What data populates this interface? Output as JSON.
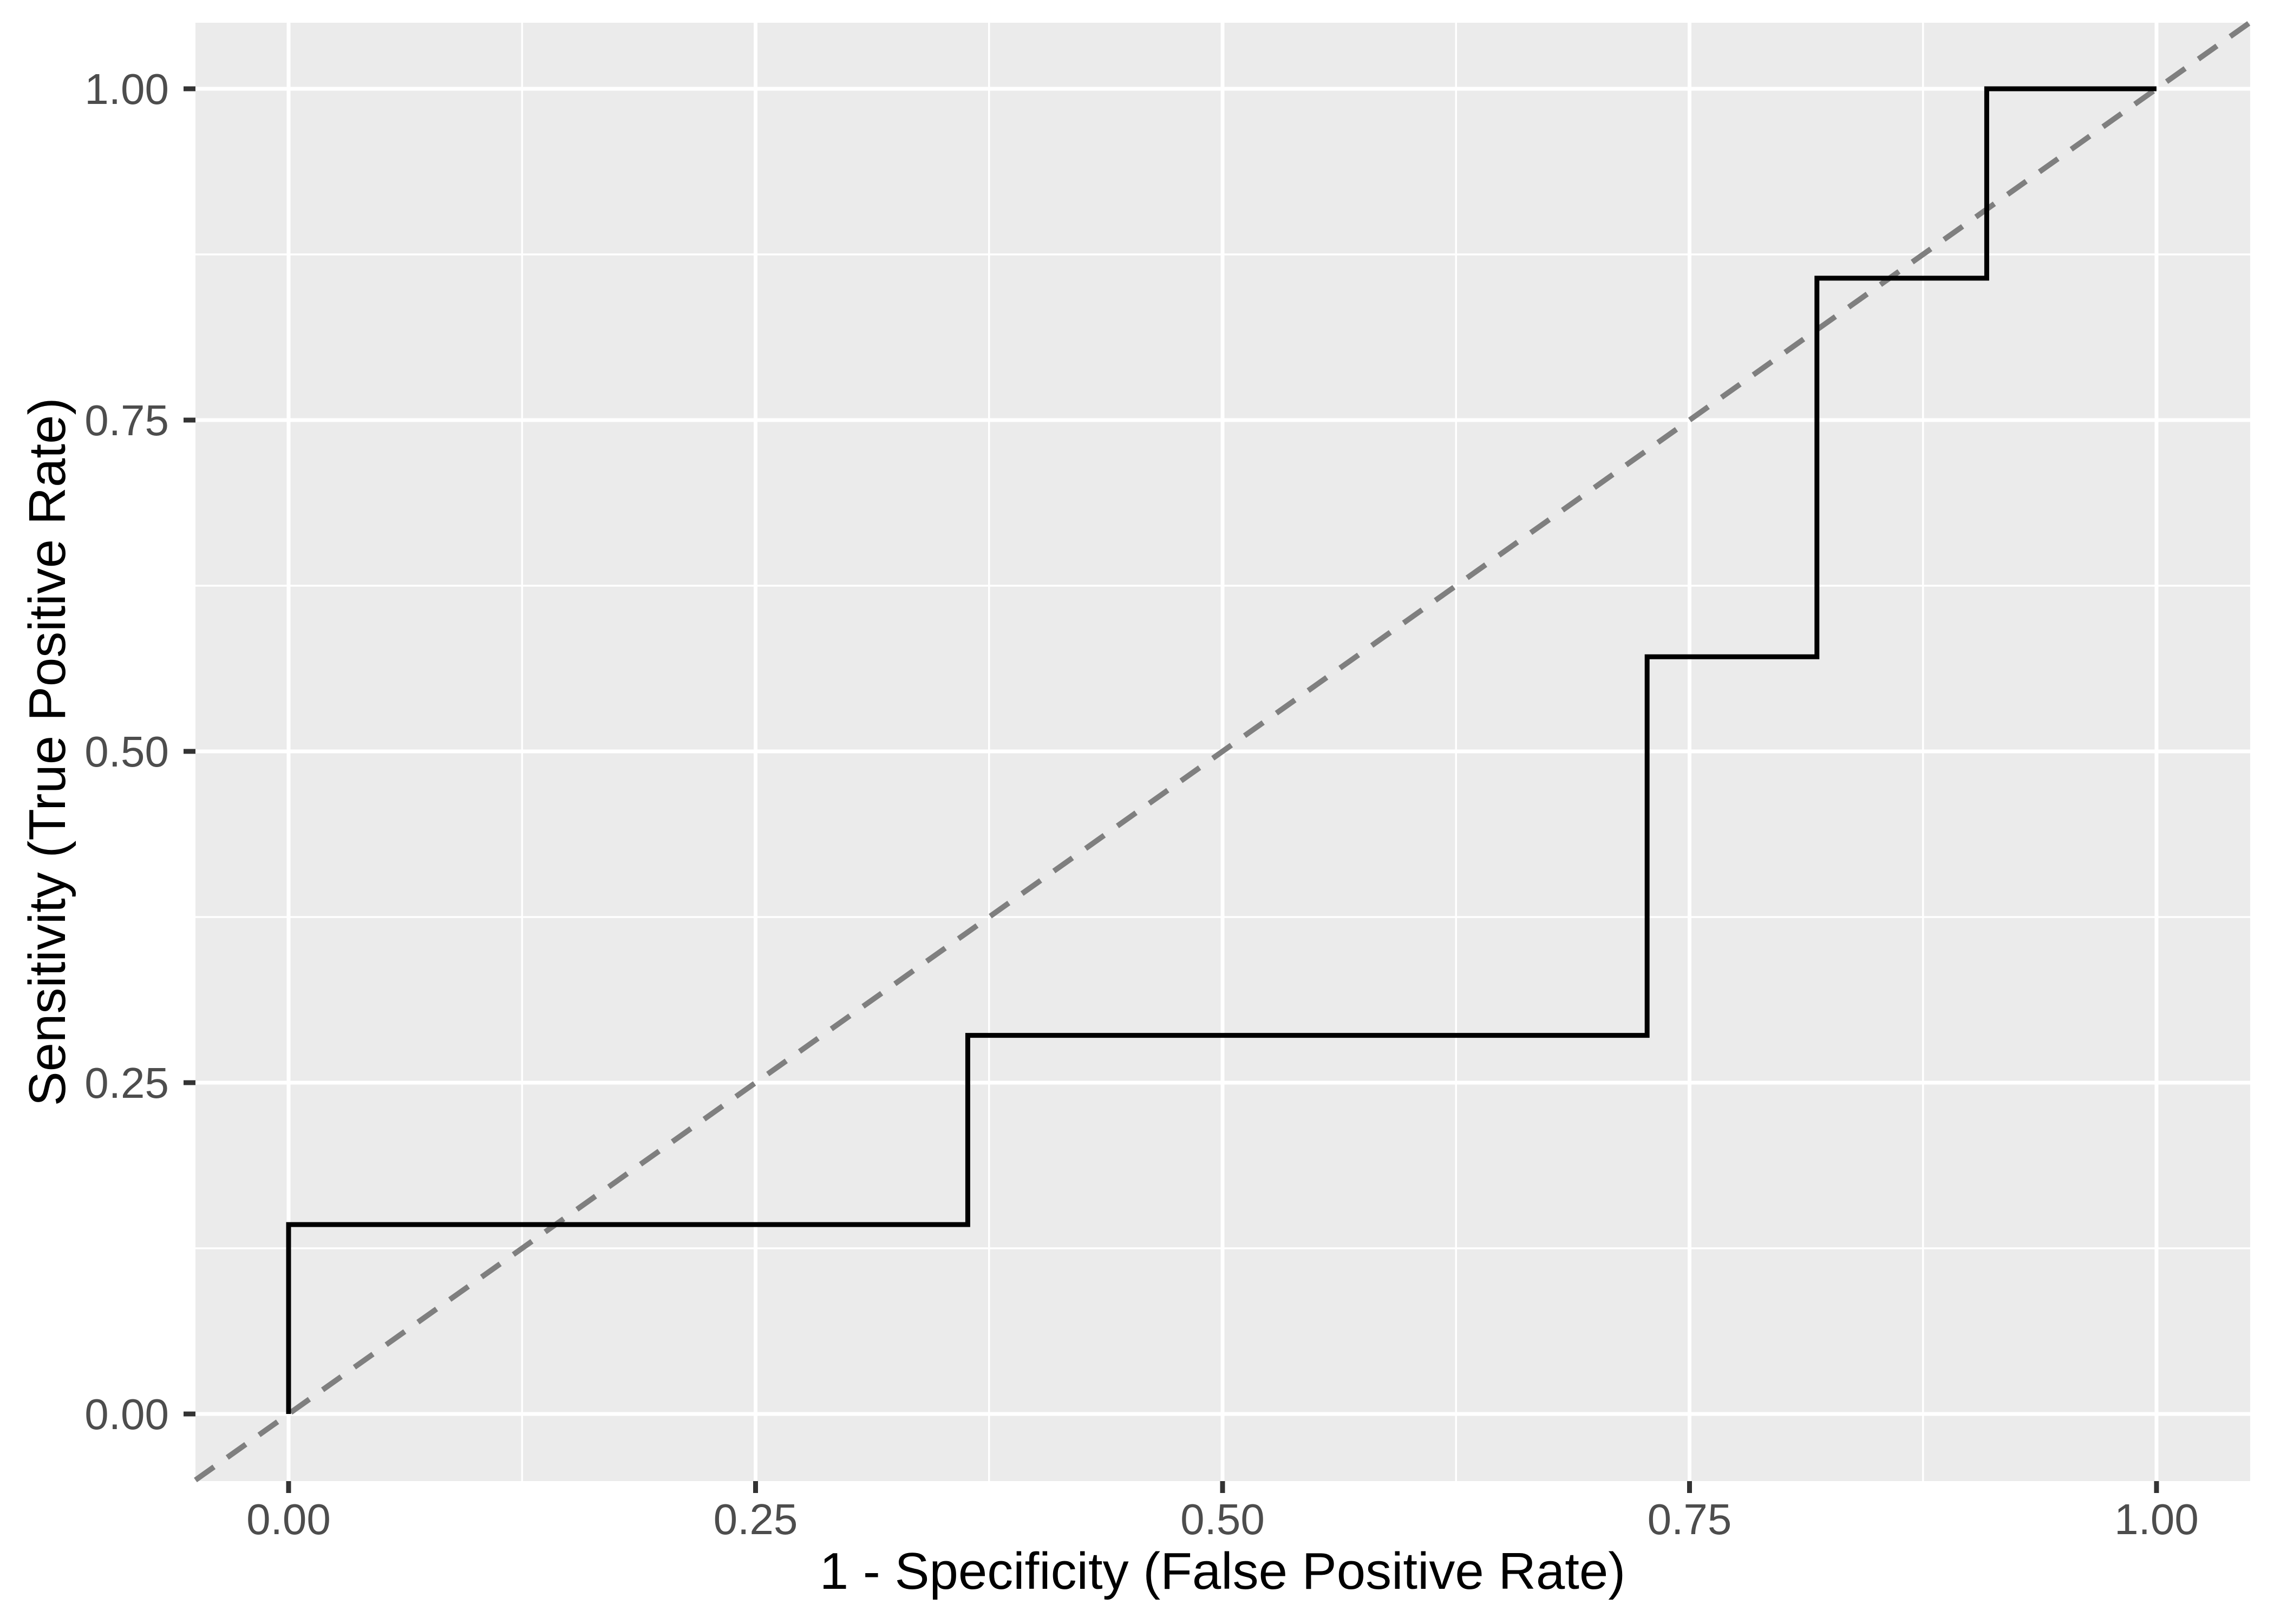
{
  "chart_data": {
    "type": "line",
    "subtype": "roc_step_curve",
    "title": "",
    "xlabel": "1 - Specificity (False Positive Rate)",
    "ylabel": "Sensitivity (True Positive Rate)",
    "xlim": [
      0,
      1
    ],
    "ylim": [
      0,
      1
    ],
    "grid": "major+minor",
    "legend_position": "none",
    "x_ticks": {
      "values": [
        0,
        0.25,
        0.5,
        0.75,
        1
      ],
      "labels": [
        "0.00",
        "0.25",
        "0.50",
        "0.75",
        "1.00"
      ]
    },
    "y_ticks": {
      "values": [
        0,
        0.25,
        0.5,
        0.75,
        1
      ],
      "labels": [
        "0.00",
        "0.25",
        "0.50",
        "0.75",
        "1.00"
      ]
    },
    "series": [
      {
        "name": "ROC curve",
        "type": "step",
        "color": "#000000",
        "linetype": "solid",
        "points": [
          [
            0.0,
            0.0
          ],
          [
            0.0,
            0.1429
          ],
          [
            0.3636,
            0.1429
          ],
          [
            0.3636,
            0.2857
          ],
          [
            0.7273,
            0.2857
          ],
          [
            0.7273,
            0.5714
          ],
          [
            0.8182,
            0.5714
          ],
          [
            0.8182,
            0.8571
          ],
          [
            0.9091,
            0.8571
          ],
          [
            0.9091,
            1.0
          ],
          [
            1.0,
            1.0
          ]
        ]
      },
      {
        "name": "chance diagonal (y = x)",
        "type": "reference-line",
        "color": "#7F7F7F",
        "linetype": "dashed",
        "points": [
          [
            0.0,
            0.0
          ],
          [
            1.0,
            1.0
          ]
        ]
      }
    ],
    "colors": {
      "panel_background": "#EBEBEB",
      "grid": "#FFFFFF",
      "curve": "#000000",
      "diagonal": "#7F7F7F",
      "tick_marks": "#333333",
      "tick_labels": "#4D4D4D",
      "axis_titles": "#000000",
      "outer_background": "#FFFFFF"
    }
  }
}
